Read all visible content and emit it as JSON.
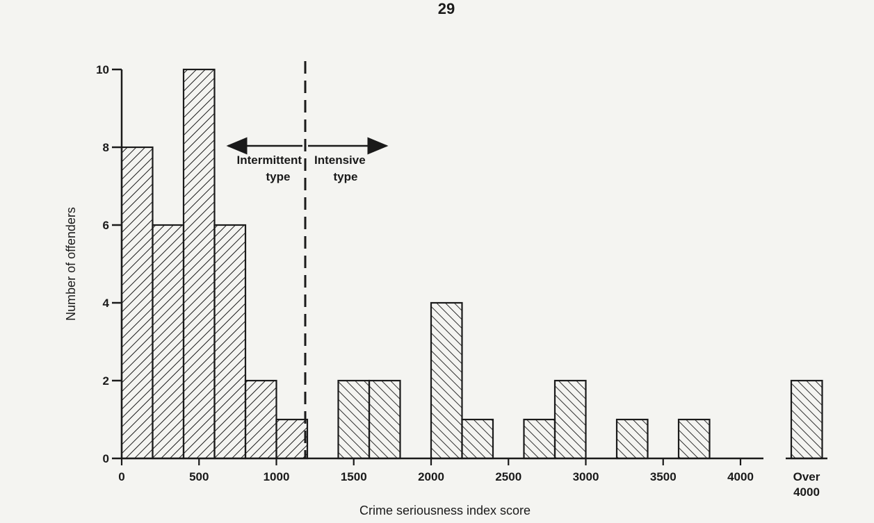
{
  "page_number": "29",
  "chart_data": {
    "type": "bar",
    "xlabel": "Crime seriousness index score",
    "ylabel": "Number of offenders",
    "xlim": [
      0,
      4200
    ],
    "ylim": [
      0,
      10
    ],
    "bin_width": 200,
    "x_ticks": [
      "0",
      "500",
      "1000",
      "1500",
      "2000",
      "2500",
      "3000",
      "3500",
      "4000"
    ],
    "x_tick_values": [
      0,
      500,
      1000,
      1500,
      2000,
      2500,
      3000,
      3500,
      4000
    ],
    "y_ticks": [
      "0",
      "2",
      "4",
      "6",
      "8",
      "10"
    ],
    "y_tick_values": [
      0,
      2,
      4,
      6,
      8,
      10
    ],
    "bars": [
      {
        "start": 0,
        "value": 8,
        "group": "intermittent"
      },
      {
        "start": 200,
        "value": 6,
        "group": "intermittent"
      },
      {
        "start": 400,
        "value": 10,
        "group": "intermittent"
      },
      {
        "start": 600,
        "value": 6,
        "group": "intermittent"
      },
      {
        "start": 800,
        "value": 2,
        "group": "intermittent"
      },
      {
        "start": 1000,
        "value": 1,
        "group": "intermittent"
      },
      {
        "start": 1400,
        "value": 2,
        "group": "intensive"
      },
      {
        "start": 1600,
        "value": 2,
        "group": "intensive"
      },
      {
        "start": 2000,
        "value": 4,
        "group": "intensive"
      },
      {
        "start": 2200,
        "value": 1,
        "group": "intensive"
      },
      {
        "start": 2600,
        "value": 1,
        "group": "intensive"
      },
      {
        "start": 2800,
        "value": 2,
        "group": "intensive"
      },
      {
        "start": 3200,
        "value": 1,
        "group": "intensive"
      },
      {
        "start": 3600,
        "value": 1,
        "group": "intensive"
      }
    ],
    "overflow_bar": {
      "label_line1": "Over",
      "label_line2": "4000",
      "value": 2
    },
    "divider_x": 1200,
    "annotations": {
      "left_line1": "Intermittent",
      "left_line2": "type",
      "right_line1": "Intensive",
      "right_line2": "type"
    }
  }
}
